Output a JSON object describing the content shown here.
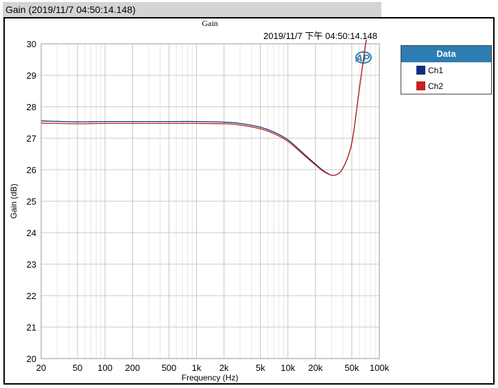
{
  "window_title": "Gain (2019/11/7  04:50:14.148)",
  "chart_data": {
    "type": "line",
    "title": "Gain",
    "subtitle": "2019/11/7 下午 04:50:14.148",
    "xlabel": "Frequency (Hz)",
    "ylabel": "Gain (dB)",
    "xscale": "log",
    "xlim": [
      20,
      100000
    ],
    "ylim": [
      20,
      30
    ],
    "grid": true,
    "xticks": [
      20,
      50,
      100,
      200,
      500,
      1000,
      2000,
      5000,
      10000,
      20000,
      50000,
      100000
    ],
    "xtick_labels": [
      "20",
      "50",
      "100",
      "200",
      "500",
      "1k",
      "2k",
      "5k",
      "10k",
      "20k",
      "50k",
      "100k"
    ],
    "yticks": [
      20,
      21,
      22,
      23,
      24,
      25,
      26,
      27,
      28,
      29,
      30
    ],
    "yticks_labels": [
      "20",
      "21",
      "22",
      "23",
      "24",
      "25",
      "26",
      "27",
      "28",
      "29",
      "30"
    ],
    "legend_title": "Data",
    "legend_position": "right",
    "series": [
      {
        "name": "Ch1",
        "color": "#0d2f7a",
        "x": [
          20,
          50,
          100,
          500,
          1000,
          2000,
          3000,
          5000,
          7000,
          10000,
          15000,
          20000,
          25000,
          32000,
          40000,
          50000,
          60000,
          70000,
          75000
        ],
        "y": [
          27.55,
          27.52,
          27.53,
          27.53,
          27.53,
          27.51,
          27.47,
          27.35,
          27.2,
          26.95,
          26.5,
          26.18,
          25.95,
          25.82,
          26.05,
          26.85,
          28.5,
          29.9,
          30.4
        ]
      },
      {
        "name": "Ch2",
        "color": "#c42020",
        "x": [
          20,
          50,
          100,
          500,
          1000,
          2000,
          3000,
          5000,
          7000,
          10000,
          15000,
          20000,
          25000,
          32000,
          40000,
          50000,
          60000,
          70000,
          75000
        ],
        "y": [
          27.48,
          27.46,
          27.47,
          27.47,
          27.47,
          27.46,
          27.42,
          27.3,
          27.15,
          26.9,
          26.46,
          26.15,
          25.93,
          25.82,
          26.05,
          26.85,
          28.5,
          29.9,
          30.4
        ]
      }
    ]
  }
}
